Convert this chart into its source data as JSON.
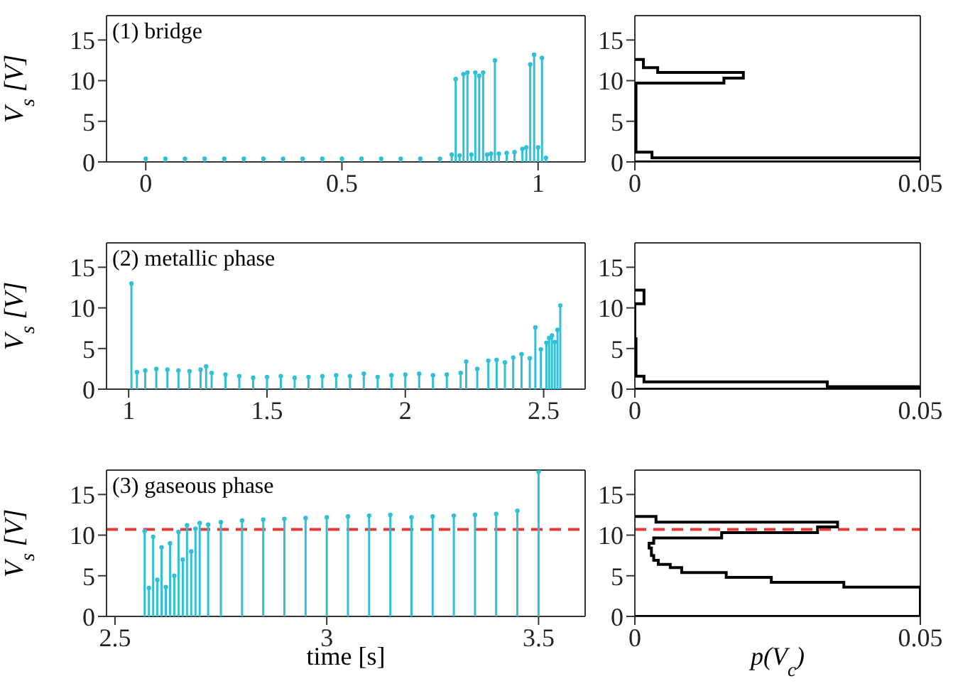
{
  "chart_data": [
    {
      "type": "lollipop",
      "ylabel": "V$_{s}$ [V]",
      "annotations": [
        "(1) bridge"
      ],
      "color": "#33bfd6",
      "marker": "circle",
      "xlim": [
        -0.1,
        1.12
      ],
      "xticks": [
        0,
        0.5,
        1
      ],
      "ylim": [
        0,
        18
      ],
      "yticks": [
        0,
        5,
        10,
        15
      ],
      "x": [
        0,
        0.05,
        0.1,
        0.15,
        0.2,
        0.25,
        0.3,
        0.35,
        0.4,
        0.45,
        0.5,
        0.55,
        0.6,
        0.65,
        0.7,
        0.75,
        0.78,
        0.79,
        0.8,
        0.81,
        0.82,
        0.83,
        0.84,
        0.85,
        0.86,
        0.87,
        0.88,
        0.89,
        0.9,
        0.92,
        0.94,
        0.96,
        0.97,
        0.98,
        0.99,
        1.0,
        1.01,
        1.02
      ],
      "values": [
        0.4,
        0.4,
        0.4,
        0.4,
        0.4,
        0.4,
        0.4,
        0.4,
        0.4,
        0.4,
        0.4,
        0.4,
        0.4,
        0.4,
        0.4,
        0.4,
        0.9,
        10.2,
        0.8,
        10.8,
        11,
        0.9,
        11,
        10.6,
        11,
        0.9,
        1,
        12.5,
        1,
        1.1,
        1.2,
        1.6,
        1.8,
        12,
        13.2,
        1.8,
        12.8,
        0.5
      ]
    },
    {
      "type": "histogram",
      "orientation": "horizontal",
      "color": "#000000",
      "xlim": [
        0,
        0.05
      ],
      "xticks": [
        0,
        0.05
      ],
      "ylim": [
        0,
        18
      ],
      "yticks": [
        0,
        5,
        10,
        15
      ],
      "bins": [
        0,
        0.5,
        1.2,
        9.7,
        10.3,
        11,
        11.6,
        12.6
      ],
      "values": [
        0.05,
        0.003,
        0.0002,
        0.0156,
        0.019,
        0.004,
        0.0015
      ]
    },
    {
      "type": "lollipop",
      "ylabel": "V$_{s}$ [V]",
      "annotations": [
        "(2) metallic phase"
      ],
      "color": "#33bfd6",
      "marker": "circle",
      "xlim": [
        0.92,
        2.65
      ],
      "xticks": [
        1,
        1.5,
        2,
        2.5
      ],
      "ylim": [
        0,
        18
      ],
      "yticks": [
        0,
        5,
        10,
        15
      ],
      "x": [
        1.01,
        1.03,
        1.06,
        1.1,
        1.14,
        1.18,
        1.22,
        1.26,
        1.28,
        1.3,
        1.35,
        1.4,
        1.45,
        1.5,
        1.55,
        1.6,
        1.65,
        1.7,
        1.75,
        1.8,
        1.85,
        1.9,
        1.95,
        2,
        2.05,
        2.1,
        2.15,
        2.2,
        2.22,
        2.26,
        2.3,
        2.33,
        2.36,
        2.39,
        2.42,
        2.45,
        2.47,
        2.49,
        2.51,
        2.52,
        2.53,
        2.54,
        2.55,
        2.56
      ],
      "values": [
        13,
        2.1,
        2.3,
        2.5,
        2.4,
        2.3,
        2.2,
        2.4,
        2.8,
        2,
        1.8,
        1.6,
        1.4,
        1.5,
        1.6,
        1.4,
        1.5,
        1.6,
        1.7,
        1.6,
        1.9,
        1.5,
        1.7,
        1.8,
        1.9,
        1.7,
        1.8,
        2,
        3.4,
        2.5,
        3.5,
        3.6,
        3.3,
        3.9,
        4.3,
        3.8,
        7.6,
        4.9,
        5.7,
        6.3,
        6.6,
        5.8,
        7.3,
        10.3
      ]
    },
    {
      "type": "histogram",
      "orientation": "horizontal",
      "color": "#000000",
      "xlim": [
        0,
        0.05
      ],
      "xticks": [
        0,
        0.05
      ],
      "ylim": [
        0,
        18
      ],
      "yticks": [
        0,
        5,
        10,
        15
      ],
      "bins": [
        0,
        0.3,
        0.9,
        1.6,
        6.2,
        10.5,
        12.2
      ],
      "values": [
        0.05,
        0.0337,
        0.0016,
        0.0002,
        0,
        0.0016
      ]
    },
    {
      "type": "lollipop",
      "xlabel": "time [s]",
      "ylabel": "V$_{s}$ [V]",
      "annotations": [
        "(3) gaseous phase"
      ],
      "color": "#33bfd6",
      "marker": "circle",
      "xlim": [
        2.48,
        3.61
      ],
      "xticks": [
        2.5,
        3,
        3.5
      ],
      "ylim": [
        0,
        18
      ],
      "yticks": [
        0,
        5,
        10,
        15
      ],
      "ref_lines": [
        {
          "axis": "y",
          "value": 10.7,
          "color": "#e53935",
          "line_style": "dashed"
        }
      ],
      "x": [
        2.57,
        2.58,
        2.59,
        2.6,
        2.61,
        2.62,
        2.63,
        2.64,
        2.65,
        2.66,
        2.67,
        2.68,
        2.69,
        2.7,
        2.72,
        2.75,
        2.8,
        2.85,
        2.9,
        2.95,
        3,
        3.05,
        3.1,
        3.15,
        3.2,
        3.25,
        3.3,
        3.35,
        3.4,
        3.45,
        3.5
      ],
      "values": [
        10.5,
        3.5,
        9.8,
        4.5,
        8.5,
        3.6,
        9,
        5,
        10.4,
        7,
        11.2,
        8,
        10.8,
        11.5,
        11.3,
        11.6,
        11.8,
        11.9,
        12,
        12.1,
        12.2,
        12.3,
        12.4,
        12.5,
        12.2,
        12.3,
        12.4,
        12.5,
        12.6,
        13,
        17.8
      ]
    },
    {
      "type": "histogram",
      "orientation": "horizontal",
      "xlabel": "p(V$_{c}$)",
      "color": "#000000",
      "xlim": [
        0,
        0.05
      ],
      "xticks": [
        0,
        0.05
      ],
      "ylim": [
        0,
        18
      ],
      "yticks": [
        0,
        5,
        10,
        15
      ],
      "ref_lines": [
        {
          "axis": "y",
          "value": 10.7,
          "color": "#e53935",
          "line_style": "dashed"
        }
      ],
      "bins": [
        0,
        3.6,
        4.2,
        4.8,
        5.4,
        6,
        6.4,
        6.9,
        7.5,
        8.4,
        9,
        9.65,
        10.3,
        11,
        11.6,
        12.3
      ],
      "values": [
        0.05,
        0.0366,
        0.0239,
        0.016,
        0.0082,
        0.0062,
        0.0041,
        0.0033,
        0.0029,
        0.0025,
        0.0033,
        0.0152,
        0.032,
        0.0355,
        0.0037
      ]
    }
  ]
}
